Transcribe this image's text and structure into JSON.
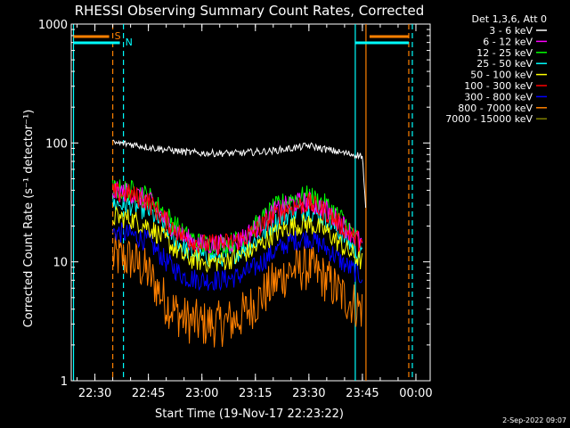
{
  "chart_data": {
    "type": "line",
    "title": "RHESSI Observing Summary Count Rates, Corrected",
    "xlabel": "Start Time (19-Nov-17 22:23:22)",
    "ylabel": "Corrected Count Rate (s⁻¹ detector⁻¹)",
    "y_scale": "log",
    "ylim": [
      1,
      1000
    ],
    "xlim": [
      "22:23:22",
      "00:04:00"
    ],
    "y_ticks": [
      "1",
      "10",
      "100",
      "1000"
    ],
    "x_ticks": [
      "22:30",
      "22:45",
      "23:00",
      "23:15",
      "23:30",
      "23:45",
      "00:00"
    ],
    "legend_header": "Det 1,3,6, Att 0",
    "legend_position": "top-right",
    "timestamp": "2-Sep-2022 09:07",
    "flags": [
      {
        "label": "S",
        "color": "#ff8000"
      },
      {
        "label": "N",
        "color": "#00ffff"
      }
    ],
    "series": [
      {
        "name": "3 - 6 keV",
        "color": "#ffffff",
        "x": [
          "22:35",
          "22:40",
          "22:45",
          "22:50",
          "22:55",
          "23:00",
          "23:05",
          "23:10",
          "23:15",
          "23:20",
          "23:25",
          "23:30",
          "23:35",
          "23:40",
          "23:45",
          "23:46"
        ],
        "y": [
          100,
          98,
          92,
          88,
          84,
          82,
          82,
          82,
          84,
          86,
          90,
          95,
          88,
          82,
          78,
          25
        ]
      },
      {
        "name": "6 - 12 keV",
        "color": "#ff00ff",
        "x": [
          "22:35",
          "22:40",
          "22:45",
          "22:50",
          "22:55",
          "23:00",
          "23:05",
          "23:10",
          "23:15",
          "23:20",
          "23:25",
          "23:30",
          "23:35",
          "23:40",
          "23:45"
        ],
        "y": [
          39,
          38,
          33,
          22,
          16,
          14,
          14,
          15,
          19,
          26,
          31,
          32,
          27,
          20,
          14
        ]
      },
      {
        "name": "12 - 25 keV",
        "color": "#00ff00",
        "x": [
          "22:35",
          "22:40",
          "22:45",
          "22:50",
          "22:55",
          "23:00",
          "23:05",
          "23:10",
          "23:15",
          "23:20",
          "23:25",
          "23:30",
          "23:35",
          "23:40",
          "23:45"
        ],
        "y": [
          41,
          40,
          36,
          25,
          17,
          14,
          14,
          15,
          20,
          28,
          34,
          36,
          30,
          22,
          13
        ]
      },
      {
        "name": "25 - 50 keV",
        "color": "#00ffff",
        "x": [
          "22:35",
          "22:40",
          "22:45",
          "22:50",
          "22:55",
          "23:00",
          "23:05",
          "23:10",
          "23:15",
          "23:20",
          "23:25",
          "23:30",
          "23:35",
          "23:40",
          "23:45"
        ],
        "y": [
          31,
          30,
          27,
          19,
          13,
          11,
          11,
          12,
          15,
          21,
          26,
          27,
          23,
          16,
          11
        ]
      },
      {
        "name": "50 - 100 keV",
        "color": "#ffff00",
        "x": [
          "22:35",
          "22:40",
          "22:45",
          "22:50",
          "22:55",
          "23:00",
          "23:05",
          "23:10",
          "23:15",
          "23:20",
          "23:25",
          "23:30",
          "23:35",
          "23:40",
          "23:45"
        ],
        "y": [
          24,
          23,
          20,
          15,
          11,
          10,
          10,
          11,
          13,
          17,
          20,
          21,
          18,
          13,
          10
        ]
      },
      {
        "name": "100 - 300 keV",
        "color": "#ff0000",
        "x": [
          "22:35",
          "22:40",
          "22:45",
          "22:50",
          "22:55",
          "23:00",
          "23:05",
          "23:10",
          "23:15",
          "23:20",
          "23:25",
          "23:30",
          "23:35",
          "23:40",
          "23:45"
        ],
        "y": [
          38,
          37,
          32,
          22,
          16,
          14,
          14,
          15,
          18,
          24,
          29,
          31,
          26,
          19,
          14
        ]
      },
      {
        "name": "300 - 800 keV",
        "color": "#0000ff",
        "x": [
          "22:35",
          "22:40",
          "22:45",
          "22:50",
          "22:55",
          "23:00",
          "23:05",
          "23:10",
          "23:15",
          "23:20",
          "23:25",
          "23:30",
          "23:35",
          "23:40",
          "23:45"
        ],
        "y": [
          18,
          17,
          15,
          10,
          7.5,
          7,
          7,
          7.5,
          9,
          12,
          15,
          16,
          13,
          9.5,
          7.5
        ]
      },
      {
        "name": "800 - 7000 keV",
        "color": "#ff8000",
        "x": [
          "22:35",
          "22:40",
          "22:45",
          "22:50",
          "22:55",
          "23:00",
          "23:05",
          "23:10",
          "23:15",
          "23:20",
          "23:25",
          "23:30",
          "23:35",
          "23:40",
          "23:45"
        ],
        "y": [
          11,
          10.5,
          8,
          4.5,
          3.3,
          3,
          3,
          3.3,
          4.5,
          6.5,
          8.5,
          9,
          7,
          5,
          4
        ]
      },
      {
        "name": "7000 - 15000 keV",
        "color": "#808000",
        "x": [],
        "y": []
      }
    ],
    "vertical_markers": [
      {
        "time": "22:24",
        "color": "#00ffff",
        "style": "solid"
      },
      {
        "time": "22:35",
        "color": "#ff8000",
        "style": "dashed"
      },
      {
        "time": "22:38",
        "color": "#00ffff",
        "style": "dashed"
      },
      {
        "time": "23:43",
        "color": "#00ffff",
        "style": "solid"
      },
      {
        "time": "23:46",
        "color": "#ff8000",
        "style": "solid"
      },
      {
        "time": "23:58",
        "color": "#ff8000",
        "style": "dashed"
      },
      {
        "time": "23:59",
        "color": "#00ffff",
        "style": "dashed"
      }
    ]
  }
}
